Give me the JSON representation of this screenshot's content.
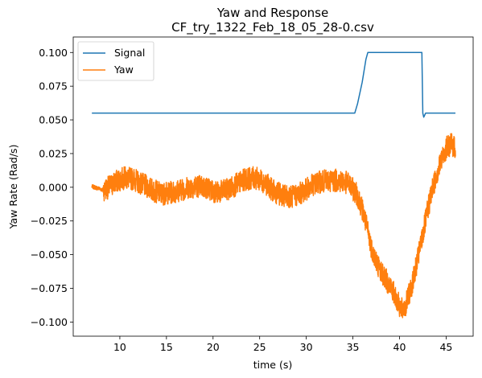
{
  "chart_data": {
    "type": "line",
    "title": "Yaw and Response",
    "subtitle": "CF_try_1322_Feb_18_05_28-0.csv",
    "xlabel": "time (s)",
    "ylabel": "Yaw Rate (Rad/s)",
    "xlim": [
      5.0,
      47.9
    ],
    "ylim": [
      -0.1105,
      0.1115
    ],
    "xticks": [
      10,
      15,
      20,
      25,
      30,
      35,
      40,
      45
    ],
    "yticks": [
      -0.1,
      -0.075,
      -0.05,
      -0.025,
      0.0,
      0.025,
      0.05,
      0.075,
      0.1
    ],
    "ytick_labels": [
      "−0.100",
      "−0.075",
      "−0.050",
      "−0.025",
      "0.000",
      "0.025",
      "0.050",
      "0.075",
      "0.100"
    ],
    "grid": false,
    "legend": "top-left",
    "series": [
      {
        "name": "Signal",
        "color": "#1f77b4",
        "x": [
          7.0,
          35.2,
          35.5,
          36.0,
          36.4,
          36.6,
          37.0,
          42.4,
          42.5,
          42.6,
          42.8,
          46.0
        ],
        "y": [
          0.055,
          0.055,
          0.062,
          0.078,
          0.095,
          0.1,
          0.1,
          0.1,
          0.055,
          0.052,
          0.055,
          0.055
        ]
      },
      {
        "name": "Yaw",
        "color": "#ff7f0e",
        "x": [
          7.0,
          7.8,
          8.2,
          8.8,
          9.5,
          10.5,
          11.5,
          12.5,
          13.5,
          14.5,
          15.5,
          16.5,
          17.5,
          18.5,
          19.5,
          20.5,
          21.5,
          22.5,
          23.5,
          24.5,
          25.5,
          26.5,
          27.5,
          28.5,
          29.5,
          30.5,
          31.5,
          32.5,
          33.5,
          34.5,
          35.5,
          36.0,
          36.5,
          37.0,
          37.5,
          38.0,
          38.5,
          39.0,
          39.5,
          40.0,
          40.3,
          40.6,
          41.0,
          41.5,
          42.0,
          42.5,
          43.0,
          43.5,
          44.0,
          44.5,
          45.0,
          45.5,
          46.0
        ],
        "y": [
          0.0005,
          -0.001,
          -0.002,
          0.0,
          0.004,
          0.007,
          0.006,
          0.002,
          -0.002,
          -0.005,
          -0.004,
          -0.002,
          0.0,
          0.001,
          -0.001,
          -0.004,
          -0.002,
          0.002,
          0.006,
          0.007,
          0.004,
          -0.003,
          -0.006,
          -0.007,
          -0.004,
          0.001,
          0.004,
          0.005,
          0.005,
          0.003,
          -0.006,
          -0.016,
          -0.03,
          -0.045,
          -0.055,
          -0.062,
          -0.068,
          -0.073,
          -0.08,
          -0.088,
          -0.091,
          -0.089,
          -0.08,
          -0.068,
          -0.052,
          -0.035,
          -0.018,
          -0.002,
          0.01,
          0.02,
          0.029,
          0.032,
          0.029
        ]
      }
    ]
  }
}
